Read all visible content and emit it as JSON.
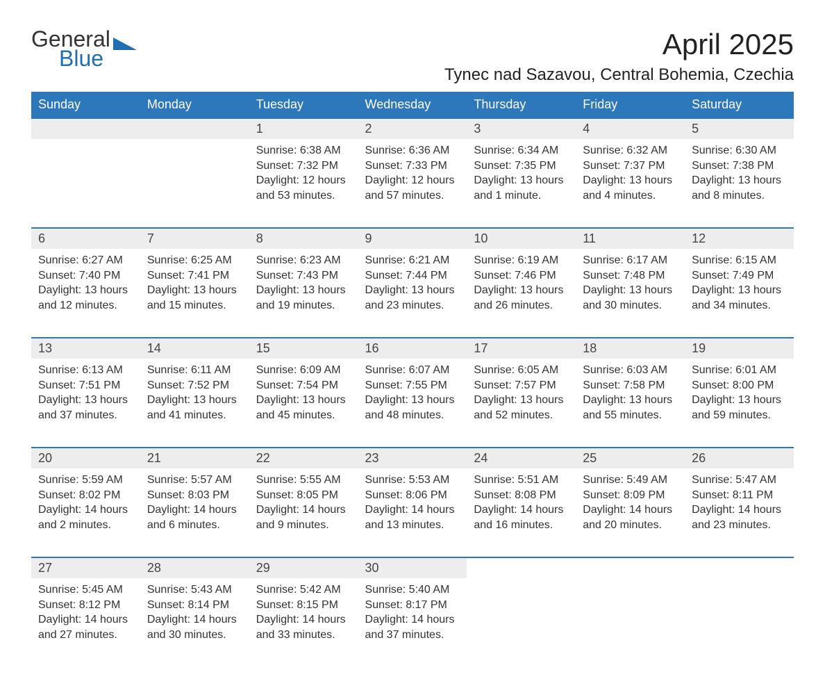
{
  "logo": {
    "word1": "General",
    "word2": "Blue",
    "icon_color": "#1f6fb2"
  },
  "title": "April 2025",
  "subtitle": "Tynec nad Sazavou, Central Bohemia, Czechia",
  "colors": {
    "header_bg": "#2d77bb",
    "header_text": "#ffffff",
    "daynum_bg": "#ededed",
    "row_border": "#2d77bb",
    "text": "#333333"
  },
  "weekdays": [
    "Sunday",
    "Monday",
    "Tuesday",
    "Wednesday",
    "Thursday",
    "Friday",
    "Saturday"
  ],
  "weeks": [
    [
      null,
      null,
      {
        "n": "1",
        "sunrise": "6:38 AM",
        "sunset": "7:32 PM",
        "daylight": "12 hours and 53 minutes."
      },
      {
        "n": "2",
        "sunrise": "6:36 AM",
        "sunset": "7:33 PM",
        "daylight": "12 hours and 57 minutes."
      },
      {
        "n": "3",
        "sunrise": "6:34 AM",
        "sunset": "7:35 PM",
        "daylight": "13 hours and 1 minute."
      },
      {
        "n": "4",
        "sunrise": "6:32 AM",
        "sunset": "7:37 PM",
        "daylight": "13 hours and 4 minutes."
      },
      {
        "n": "5",
        "sunrise": "6:30 AM",
        "sunset": "7:38 PM",
        "daylight": "13 hours and 8 minutes."
      }
    ],
    [
      {
        "n": "6",
        "sunrise": "6:27 AM",
        "sunset": "7:40 PM",
        "daylight": "13 hours and 12 minutes."
      },
      {
        "n": "7",
        "sunrise": "6:25 AM",
        "sunset": "7:41 PM",
        "daylight": "13 hours and 15 minutes."
      },
      {
        "n": "8",
        "sunrise": "6:23 AM",
        "sunset": "7:43 PM",
        "daylight": "13 hours and 19 minutes."
      },
      {
        "n": "9",
        "sunrise": "6:21 AM",
        "sunset": "7:44 PM",
        "daylight": "13 hours and 23 minutes."
      },
      {
        "n": "10",
        "sunrise": "6:19 AM",
        "sunset": "7:46 PM",
        "daylight": "13 hours and 26 minutes."
      },
      {
        "n": "11",
        "sunrise": "6:17 AM",
        "sunset": "7:48 PM",
        "daylight": "13 hours and 30 minutes."
      },
      {
        "n": "12",
        "sunrise": "6:15 AM",
        "sunset": "7:49 PM",
        "daylight": "13 hours and 34 minutes."
      }
    ],
    [
      {
        "n": "13",
        "sunrise": "6:13 AM",
        "sunset": "7:51 PM",
        "daylight": "13 hours and 37 minutes."
      },
      {
        "n": "14",
        "sunrise": "6:11 AM",
        "sunset": "7:52 PM",
        "daylight": "13 hours and 41 minutes."
      },
      {
        "n": "15",
        "sunrise": "6:09 AM",
        "sunset": "7:54 PM",
        "daylight": "13 hours and 45 minutes."
      },
      {
        "n": "16",
        "sunrise": "6:07 AM",
        "sunset": "7:55 PM",
        "daylight": "13 hours and 48 minutes."
      },
      {
        "n": "17",
        "sunrise": "6:05 AM",
        "sunset": "7:57 PM",
        "daylight": "13 hours and 52 minutes."
      },
      {
        "n": "18",
        "sunrise": "6:03 AM",
        "sunset": "7:58 PM",
        "daylight": "13 hours and 55 minutes."
      },
      {
        "n": "19",
        "sunrise": "6:01 AM",
        "sunset": "8:00 PM",
        "daylight": "13 hours and 59 minutes."
      }
    ],
    [
      {
        "n": "20",
        "sunrise": "5:59 AM",
        "sunset": "8:02 PM",
        "daylight": "14 hours and 2 minutes."
      },
      {
        "n": "21",
        "sunrise": "5:57 AM",
        "sunset": "8:03 PM",
        "daylight": "14 hours and 6 minutes."
      },
      {
        "n": "22",
        "sunrise": "5:55 AM",
        "sunset": "8:05 PM",
        "daylight": "14 hours and 9 minutes."
      },
      {
        "n": "23",
        "sunrise": "5:53 AM",
        "sunset": "8:06 PM",
        "daylight": "14 hours and 13 minutes."
      },
      {
        "n": "24",
        "sunrise": "5:51 AM",
        "sunset": "8:08 PM",
        "daylight": "14 hours and 16 minutes."
      },
      {
        "n": "25",
        "sunrise": "5:49 AM",
        "sunset": "8:09 PM",
        "daylight": "14 hours and 20 minutes."
      },
      {
        "n": "26",
        "sunrise": "5:47 AM",
        "sunset": "8:11 PM",
        "daylight": "14 hours and 23 minutes."
      }
    ],
    [
      {
        "n": "27",
        "sunrise": "5:45 AM",
        "sunset": "8:12 PM",
        "daylight": "14 hours and 27 minutes."
      },
      {
        "n": "28",
        "sunrise": "5:43 AM",
        "sunset": "8:14 PM",
        "daylight": "14 hours and 30 minutes."
      },
      {
        "n": "29",
        "sunrise": "5:42 AM",
        "sunset": "8:15 PM",
        "daylight": "14 hours and 33 minutes."
      },
      {
        "n": "30",
        "sunrise": "5:40 AM",
        "sunset": "8:17 PM",
        "daylight": "14 hours and 37 minutes."
      },
      null,
      null,
      null
    ]
  ],
  "labels": {
    "sunrise": "Sunrise: ",
    "sunset": "Sunset: ",
    "daylight": "Daylight: "
  }
}
